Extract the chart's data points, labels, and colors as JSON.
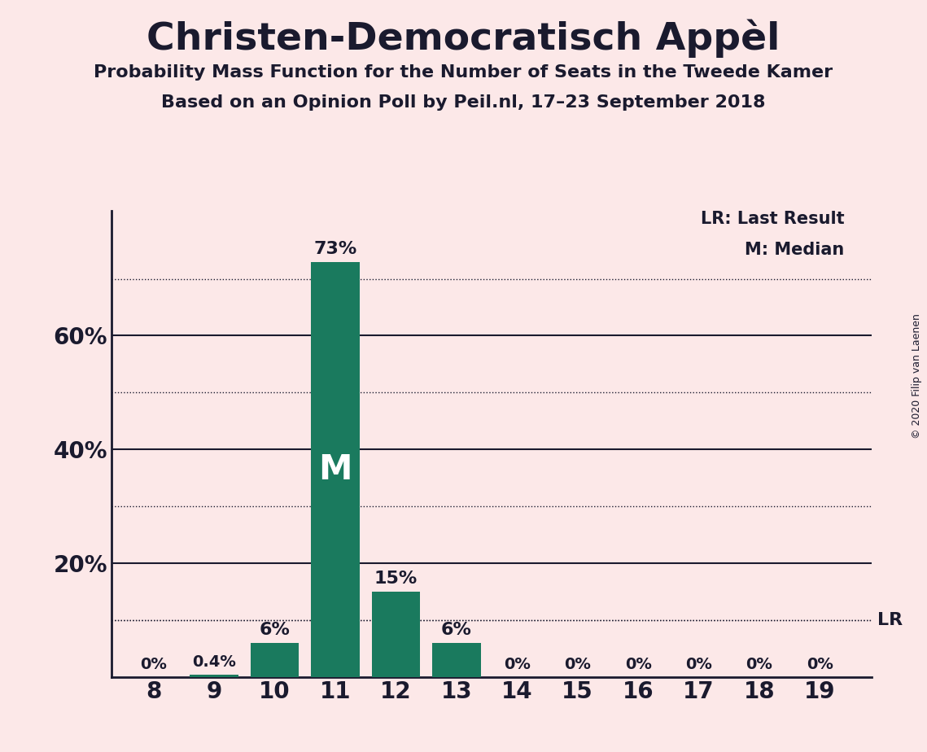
{
  "title_display": "Christen-Democratisch Appèl",
  "subtitle1": "Probability Mass Function for the Number of Seats in the Tweede Kamer",
  "subtitle2": "Based on an Opinion Poll by Peil.nl, 17–23 September 2018",
  "copyright": "© 2020 Filip van Laenen",
  "seats": [
    8,
    9,
    10,
    11,
    12,
    13,
    14,
    15,
    16,
    17,
    18,
    19
  ],
  "probabilities": [
    0.0,
    0.4,
    6.0,
    73.0,
    15.0,
    6.0,
    0.0,
    0.0,
    0.0,
    0.0,
    0.0,
    0.0
  ],
  "bar_color": "#1a7a5e",
  "background_color": "#fce8e8",
  "text_color": "#1a1a2e",
  "median_seat": 11,
  "lr_value": 10.0,
  "bar_labels": [
    "0%",
    "0.4%",
    "6%",
    "73%",
    "15%",
    "6%",
    "0%",
    "0%",
    "0%",
    "0%",
    "0%",
    "0%"
  ],
  "dotted_lines": [
    10,
    30,
    50,
    70
  ],
  "solid_lines": [
    20,
    40,
    60
  ],
  "ylim": [
    0,
    82
  ]
}
